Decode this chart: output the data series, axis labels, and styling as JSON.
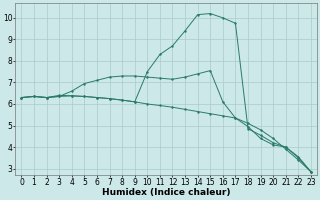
{
  "xlabel": "Humidex (Indice chaleur)",
  "background_color": "#cce8e8",
  "grid_color": "#aacccc",
  "line_color": "#2a7a6a",
  "xlim": [
    -0.5,
    23.5
  ],
  "ylim": [
    2.7,
    10.7
  ],
  "xticks": [
    0,
    1,
    2,
    3,
    4,
    5,
    6,
    7,
    8,
    9,
    10,
    11,
    12,
    13,
    14,
    15,
    16,
    17,
    18,
    19,
    20,
    21,
    22,
    23
  ],
  "yticks": [
    3,
    4,
    5,
    6,
    7,
    8,
    9,
    10
  ],
  "series1_x": [
    0,
    1,
    2,
    3,
    4,
    5,
    6,
    7,
    8,
    9,
    10,
    11,
    12,
    13,
    14,
    15,
    16,
    17,
    18,
    19,
    20,
    21,
    22,
    23
  ],
  "series1_y": [
    6.3,
    6.35,
    6.3,
    6.4,
    6.38,
    6.35,
    6.3,
    6.25,
    6.18,
    6.1,
    6.0,
    5.93,
    5.85,
    5.75,
    5.65,
    5.55,
    5.45,
    5.35,
    5.1,
    4.8,
    4.4,
    3.9,
    3.4,
    2.85
  ],
  "series2_x": [
    0,
    1,
    2,
    3,
    4,
    5,
    6,
    7,
    8,
    9,
    10,
    11,
    12,
    13,
    14,
    15,
    16,
    17,
    18,
    19,
    20,
    21,
    22,
    23
  ],
  "series2_y": [
    6.3,
    6.35,
    6.3,
    6.35,
    6.6,
    6.95,
    7.1,
    7.25,
    7.3,
    7.3,
    7.25,
    7.2,
    7.15,
    7.25,
    7.4,
    7.55,
    6.1,
    5.35,
    4.95,
    4.4,
    4.1,
    4.0,
    3.55,
    2.85
  ],
  "series3_x": [
    0,
    1,
    2,
    3,
    4,
    5,
    6,
    7,
    8,
    9,
    10,
    11,
    12,
    13,
    14,
    15,
    16,
    17,
    18,
    19,
    20,
    21,
    22,
    23
  ],
  "series3_y": [
    6.3,
    6.35,
    6.3,
    6.35,
    6.38,
    6.35,
    6.3,
    6.25,
    6.18,
    6.1,
    7.5,
    8.3,
    8.7,
    9.4,
    10.15,
    10.2,
    10.0,
    9.75,
    4.85,
    4.55,
    4.2,
    4.0,
    3.5,
    2.85
  ],
  "marker_size": 1.8,
  "line_width": 0.7,
  "font_size_label": 6.5,
  "font_size_tick": 5.5
}
